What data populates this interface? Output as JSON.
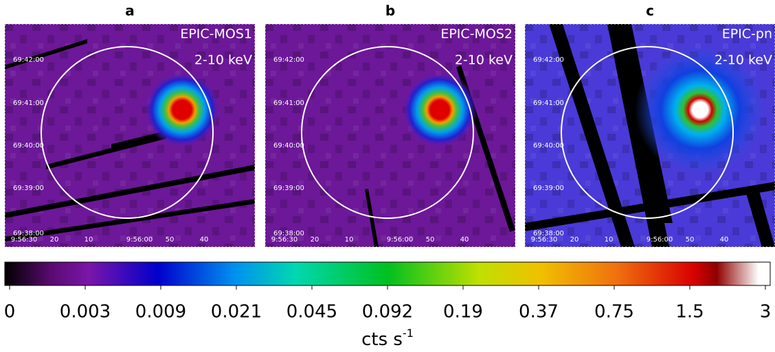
{
  "panels": [
    {
      "label": "a",
      "instrument": "EPIC-MOS1",
      "band": "2-10 keV",
      "ra_ticks": [
        "9:56:30",
        "20",
        "10",
        "9:56:00",
        "50",
        "40"
      ],
      "dec_ticks": [
        "69:42:00",
        "69:41:00",
        "69:40:00",
        "69:39:00",
        "69:38:00"
      ]
    },
    {
      "label": "b",
      "instrument": "EPIC-MOS2",
      "band": "2-10 keV",
      "ra_ticks": [
        "9:56:30",
        "20",
        "10",
        "9:56:00",
        "50",
        "40"
      ],
      "dec_ticks": [
        "69:42:00",
        "69:41:00",
        "69:40:00",
        "69:39:00",
        "69:38:00"
      ]
    },
    {
      "label": "c",
      "instrument": "EPIC-pn",
      "band": "2-10 keV",
      "ra_ticks": [
        "9:56:30",
        "20",
        "10",
        "9:56:00",
        "50",
        "40"
      ],
      "dec_ticks": [
        "69:42:00",
        "69:41:00",
        "69:40:00",
        "69:39:00",
        "69:38:00"
      ]
    }
  ],
  "colorbar": {
    "ticks": [
      0,
      0.003,
      0.009,
      0.021,
      0.045,
      0.092,
      0.19,
      0.37,
      0.75,
      1.5,
      3
    ],
    "label": "cts s",
    "label_sup": "-1"
  }
}
